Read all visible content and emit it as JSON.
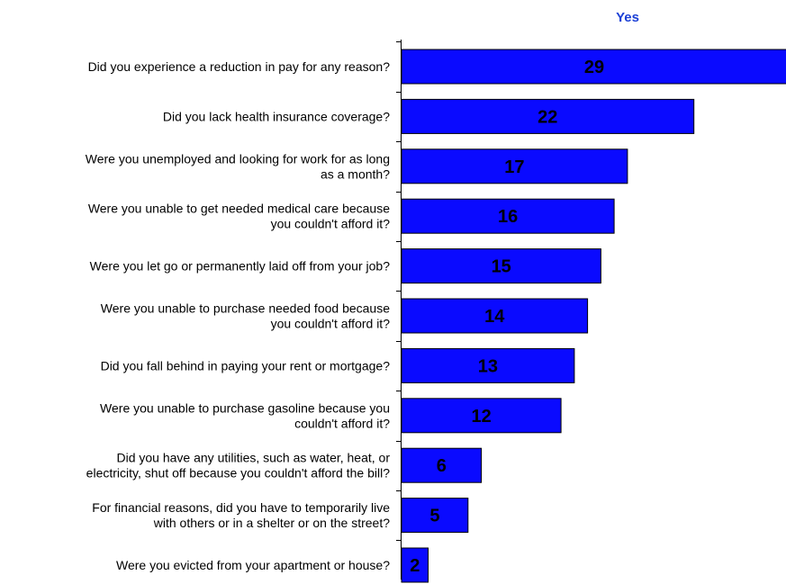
{
  "chart_data": {
    "type": "bar",
    "orientation": "horizontal",
    "series_label": "Yes",
    "categories": [
      [
        "Did you experience a reduction in pay for any reason?"
      ],
      [
        "Did you lack health insurance coverage?"
      ],
      [
        "Were you unemployed and looking for work for as long",
        "as a month?"
      ],
      [
        "Were you unable to get needed medical care because",
        "you couldn't afford it?"
      ],
      [
        "Were you let go or permanently laid off from your job?"
      ],
      [
        "Were you unable to purchase needed food because",
        "you couldn't afford it?"
      ],
      [
        "Did you fall behind in paying your rent or mortgage?"
      ],
      [
        "Were you unable to purchase gasoline because you",
        "couldn't afford it?"
      ],
      [
        "Did you have any utilities, such as water, heat, or",
        "electricity, shut off because you couldn't afford the bill?"
      ],
      [
        "For financial reasons, did you have to temporarily live",
        "with others or in a shelter or on the street?"
      ],
      [
        "Were you evicted from your apartment or house?"
      ]
    ],
    "values": [
      29,
      22,
      17,
      16,
      15,
      14,
      13,
      12,
      6,
      5,
      2
    ],
    "xlim": [
      0,
      29
    ],
    "grid": false,
    "bar_color": "#0a0aff",
    "series_label_color": "#1a3fd6"
  }
}
